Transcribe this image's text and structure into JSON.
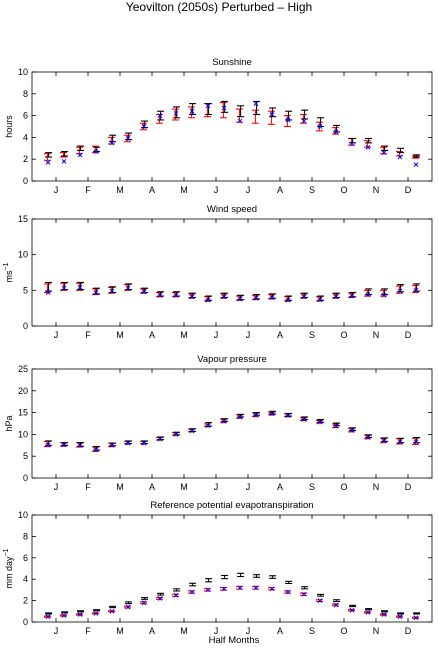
{
  "figure": {
    "title": "Yeovilton (2050s) Perturbed – High",
    "xlabel": "Half Months"
  },
  "colors": {
    "baseline": "#ff0000",
    "future": "#0000ff",
    "errorbar": "#000000"
  },
  "chart_data": [
    {
      "type": "scatter",
      "title": "Sunshine",
      "ylabel": "hours",
      "ylim": [
        0,
        10
      ],
      "yticks": [
        0,
        2,
        4,
        6,
        8,
        10
      ],
      "xlim": [
        0,
        25
      ],
      "xticks": [
        1.5,
        3.5,
        5.5,
        7.5,
        9.5,
        11.5,
        13.5,
        15.5,
        17.5,
        19.5,
        21.5,
        23.5
      ],
      "xticklabels": [
        "J",
        "F",
        "M",
        "A",
        "M",
        "J",
        "J",
        "A",
        "S",
        "O",
        "N",
        "D"
      ],
      "x": [
        1,
        2,
        3,
        4,
        5,
        6,
        7,
        8,
        9,
        10,
        11,
        12,
        13,
        14,
        15,
        16,
        17,
        18,
        19,
        20,
        21,
        22,
        23,
        24
      ],
      "series": [
        {
          "role": "red-errorbar",
          "mid": [
            2.2,
            2.4,
            2.8,
            2.9,
            3.7,
            3.9,
            5.0,
            5.7,
            6.1,
            6.3,
            6.5,
            6.5,
            6.0,
            5.9,
            5.8,
            5.5,
            5.7,
            5.0,
            4.6,
            3.6,
            3.4,
            2.8,
            2.5,
            2.2
          ],
          "half": [
            0.3,
            0.2,
            0.3,
            0.3,
            0.3,
            0.3,
            0.3,
            0.4,
            0.5,
            0.5,
            0.6,
            0.7,
            0.6,
            0.6,
            0.6,
            0.5,
            0.4,
            0.4,
            0.3,
            0.3,
            0.3,
            0.3,
            0.2,
            0.1
          ]
        },
        {
          "role": "black-errorbar",
          "mid": [
            2.4,
            2.5,
            3.0,
            2.9,
            3.9,
            4.1,
            5.2,
            6.0,
            6.3,
            6.6,
            6.6,
            6.8,
            6.4,
            6.7,
            6.3,
            6.0,
            6.1,
            5.4,
            4.8,
            3.7,
            3.7,
            3.0,
            2.8,
            2.3
          ],
          "half": [
            0.2,
            0.2,
            0.2,
            0.2,
            0.3,
            0.3,
            0.3,
            0.4,
            0.5,
            0.5,
            0.5,
            0.5,
            0.5,
            0.6,
            0.4,
            0.4,
            0.4,
            0.4,
            0.3,
            0.2,
            0.2,
            0.2,
            0.2,
            0.1
          ]
        },
        {
          "role": "blue-cross",
          "values": [
            1.7,
            1.8,
            2.4,
            2.7,
            3.5,
            3.9,
            5.0,
            6.0,
            6.2,
            6.4,
            6.9,
            6.7,
            5.5,
            7.1,
            6.1,
            5.6,
            5.5,
            5.0,
            4.5,
            3.4,
            3.1,
            2.6,
            2.2,
            1.5
          ]
        }
      ]
    },
    {
      "type": "scatter",
      "title": "Wind speed",
      "ylabel": "ms",
      "ylabel_sup": "−1",
      "ylim": [
        0,
        15
      ],
      "yticks": [
        0,
        5,
        10,
        15
      ],
      "xlim": [
        0,
        25
      ],
      "xticks": [
        1.5,
        3.5,
        5.5,
        7.5,
        9.5,
        11.5,
        13.5,
        15.5,
        17.5,
        19.5,
        21.5,
        23.5
      ],
      "xticklabels": [
        "J",
        "F",
        "M",
        "A",
        "M",
        "J",
        "J",
        "A",
        "S",
        "O",
        "N",
        "D"
      ],
      "x": [
        1,
        2,
        3,
        4,
        5,
        6,
        7,
        8,
        9,
        10,
        11,
        12,
        13,
        14,
        15,
        16,
        17,
        18,
        19,
        20,
        21,
        22,
        23,
        24
      ],
      "series": [
        {
          "role": "red-errorbar",
          "mid": [
            5.3,
            5.5,
            5.5,
            4.8,
            5.0,
            5.4,
            4.9,
            4.4,
            4.4,
            4.2,
            3.8,
            4.2,
            3.9,
            4.0,
            4.1,
            3.8,
            4.2,
            3.8,
            4.2,
            4.3,
            4.6,
            4.6,
            5.1,
            5.2
          ],
          "half": [
            0.6,
            0.5,
            0.5,
            0.4,
            0.4,
            0.4,
            0.3,
            0.3,
            0.3,
            0.3,
            0.3,
            0.3,
            0.3,
            0.3,
            0.3,
            0.3,
            0.3,
            0.3,
            0.3,
            0.3,
            0.4,
            0.4,
            0.5,
            0.5
          ]
        },
        {
          "role": "black-errorbar",
          "mid": [
            5.5,
            5.6,
            5.6,
            4.9,
            5.1,
            5.5,
            5.0,
            4.5,
            4.5,
            4.3,
            3.9,
            4.3,
            4.0,
            4.1,
            4.2,
            3.9,
            4.3,
            3.9,
            4.3,
            4.4,
            4.8,
            4.8,
            5.3,
            5.4
          ],
          "half": [
            0.6,
            0.5,
            0.5,
            0.4,
            0.4,
            0.4,
            0.3,
            0.3,
            0.3,
            0.3,
            0.3,
            0.3,
            0.3,
            0.3,
            0.3,
            0.3,
            0.3,
            0.3,
            0.3,
            0.3,
            0.4,
            0.4,
            0.5,
            0.5
          ]
        },
        {
          "role": "blue-cross",
          "values": [
            4.7,
            5.3,
            5.4,
            4.7,
            4.9,
            5.3,
            4.8,
            4.3,
            4.3,
            4.1,
            3.6,
            4.1,
            3.8,
            3.9,
            4.0,
            3.6,
            4.1,
            3.7,
            4.1,
            4.2,
            4.4,
            4.3,
            4.9,
            5.0
          ]
        }
      ]
    },
    {
      "type": "scatter",
      "title": "Vapour pressure",
      "ylabel": "hPa",
      "ylim": [
        0,
        25
      ],
      "yticks": [
        0,
        5,
        10,
        15,
        20,
        25
      ],
      "xlim": [
        0,
        25
      ],
      "xticks": [
        1.5,
        3.5,
        5.5,
        7.5,
        9.5,
        11.5,
        13.5,
        15.5,
        17.5,
        19.5,
        21.5,
        23.5
      ],
      "xticklabels": [
        "J",
        "F",
        "M",
        "A",
        "M",
        "J",
        "J",
        "A",
        "S",
        "O",
        "N",
        "D"
      ],
      "x": [
        1,
        2,
        3,
        4,
        5,
        6,
        7,
        8,
        9,
        10,
        11,
        12,
        13,
        14,
        15,
        16,
        17,
        18,
        19,
        20,
        21,
        22,
        23,
        24
      ],
      "series": [
        {
          "role": "red-errorbar",
          "mid": [
            7.8,
            7.7,
            7.6,
            6.6,
            7.6,
            8.1,
            8.1,
            9.0,
            10.1,
            10.9,
            12.1,
            13.1,
            14.1,
            14.5,
            14.8,
            14.4,
            13.5,
            12.9,
            12.0,
            11.0,
            9.4,
            8.6,
            8.4,
            8.4
          ],
          "half": [
            0.6,
            0.4,
            0.5,
            0.5,
            0.4,
            0.3,
            0.3,
            0.3,
            0.3,
            0.3,
            0.3,
            0.4,
            0.4,
            0.4,
            0.3,
            0.3,
            0.3,
            0.3,
            0.4,
            0.4,
            0.4,
            0.5,
            0.6,
            0.7
          ]
        },
        {
          "role": "black-errorbar",
          "mid": [
            8.0,
            7.8,
            7.7,
            6.8,
            7.7,
            8.2,
            8.2,
            9.1,
            10.2,
            11.0,
            12.3,
            13.3,
            14.3,
            14.7,
            15.0,
            14.5,
            13.7,
            13.1,
            12.3,
            11.2,
            9.6,
            8.8,
            8.6,
            8.7
          ],
          "half": [
            0.5,
            0.3,
            0.4,
            0.4,
            0.3,
            0.3,
            0.3,
            0.3,
            0.3,
            0.3,
            0.4,
            0.3,
            0.3,
            0.3,
            0.3,
            0.3,
            0.3,
            0.3,
            0.3,
            0.3,
            0.3,
            0.4,
            0.5,
            0.6
          ]
        },
        {
          "role": "blue-cross",
          "values": [
            7.6,
            7.6,
            7.5,
            6.5,
            7.5,
            8.0,
            8.0,
            8.9,
            10.0,
            10.8,
            12.0,
            13.0,
            14.0,
            14.4,
            14.7,
            14.3,
            13.4,
            12.8,
            11.9,
            10.9,
            9.3,
            8.5,
            8.3,
            8.3
          ]
        }
      ]
    },
    {
      "type": "scatter",
      "title": "Reference potential evapotranspiration",
      "ylabel": "mm day",
      "ylabel_sup": "−1",
      "ylim": [
        0,
        10
      ],
      "yticks": [
        0,
        2,
        4,
        6,
        8,
        10
      ],
      "xlim": [
        0,
        25
      ],
      "xticks": [
        1.5,
        3.5,
        5.5,
        7.5,
        9.5,
        11.5,
        13.5,
        15.5,
        17.5,
        19.5,
        21.5,
        23.5
      ],
      "xticklabels": [
        "J",
        "F",
        "M",
        "A",
        "M",
        "J",
        "J",
        "A",
        "S",
        "O",
        "N",
        "D"
      ],
      "x": [
        1,
        2,
        3,
        4,
        5,
        6,
        7,
        8,
        9,
        10,
        11,
        12,
        13,
        14,
        15,
        16,
        17,
        18,
        19,
        20,
        21,
        22,
        23,
        24
      ],
      "series": [
        {
          "role": "red-errorbar",
          "mid": [
            0.5,
            0.6,
            0.7,
            0.8,
            1.0,
            1.4,
            1.8,
            2.2,
            2.5,
            2.8,
            3.0,
            3.1,
            3.2,
            3.2,
            3.1,
            2.8,
            2.6,
            2.0,
            1.6,
            1.1,
            0.9,
            0.7,
            0.5,
            0.4
          ],
          "half": [
            0.05,
            0.05,
            0.05,
            0.05,
            0.05,
            0.08,
            0.08,
            0.08,
            0.1,
            0.1,
            0.1,
            0.12,
            0.12,
            0.12,
            0.1,
            0.1,
            0.1,
            0.08,
            0.08,
            0.06,
            0.05,
            0.05,
            0.05,
            0.05
          ]
        },
        {
          "role": "black-errorbar",
          "mid": [
            0.8,
            0.9,
            1.0,
            1.1,
            1.4,
            1.8,
            2.2,
            2.6,
            3.0,
            3.5,
            3.9,
            4.2,
            4.4,
            4.3,
            4.2,
            3.7,
            3.2,
            2.5,
            2.0,
            1.5,
            1.2,
            1.0,
            0.8,
            0.8
          ],
          "half": [
            0.05,
            0.05,
            0.05,
            0.05,
            0.06,
            0.08,
            0.08,
            0.08,
            0.1,
            0.12,
            0.15,
            0.15,
            0.15,
            0.12,
            0.12,
            0.1,
            0.1,
            0.08,
            0.08,
            0.06,
            0.05,
            0.05,
            0.05,
            0.05
          ]
        },
        {
          "role": "blue-cross",
          "values": [
            0.5,
            0.6,
            0.7,
            0.8,
            1.0,
            1.4,
            1.8,
            2.2,
            2.5,
            2.8,
            3.0,
            3.1,
            3.2,
            3.2,
            3.1,
            2.8,
            2.6,
            2.0,
            1.6,
            1.1,
            0.9,
            0.7,
            0.5,
            0.4
          ]
        }
      ]
    }
  ]
}
